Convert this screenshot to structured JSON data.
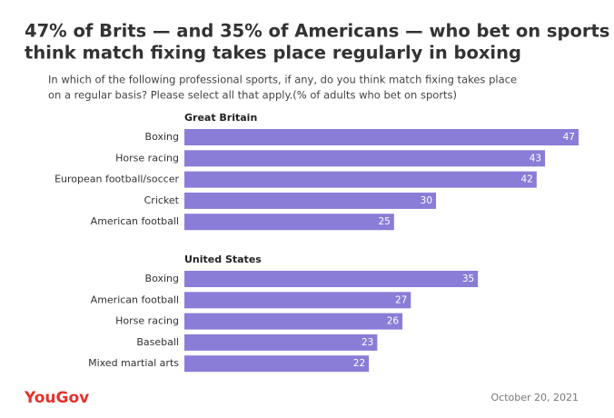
{
  "header": {
    "title": "47% of Brits — and 35% of Americans — who bet on sports think match fixing takes place regularly in boxing",
    "subtitle": "In which of the following professional sports, if any, do you think match fixing takes place on a regular basis? Please select all that apply.(% of adults who bet on sports)"
  },
  "chart_data": [
    {
      "type": "bar",
      "title": "Great Britain",
      "categories": [
        "Boxing",
        "Horse racing",
        "European football/soccer",
        "Cricket",
        "American football"
      ],
      "values": [
        47,
        43,
        42,
        30,
        25
      ],
      "color": "#8a7dd8"
    },
    {
      "type": "bar",
      "title": "United States",
      "categories": [
        "Boxing",
        "American football",
        "Horse racing",
        "Baseball",
        "Mixed martial arts"
      ],
      "values": [
        35,
        27,
        26,
        23,
        22
      ],
      "color": "#8a7dd8"
    }
  ],
  "footer": {
    "brand": "YouGov",
    "date": "October 20, 2021"
  }
}
